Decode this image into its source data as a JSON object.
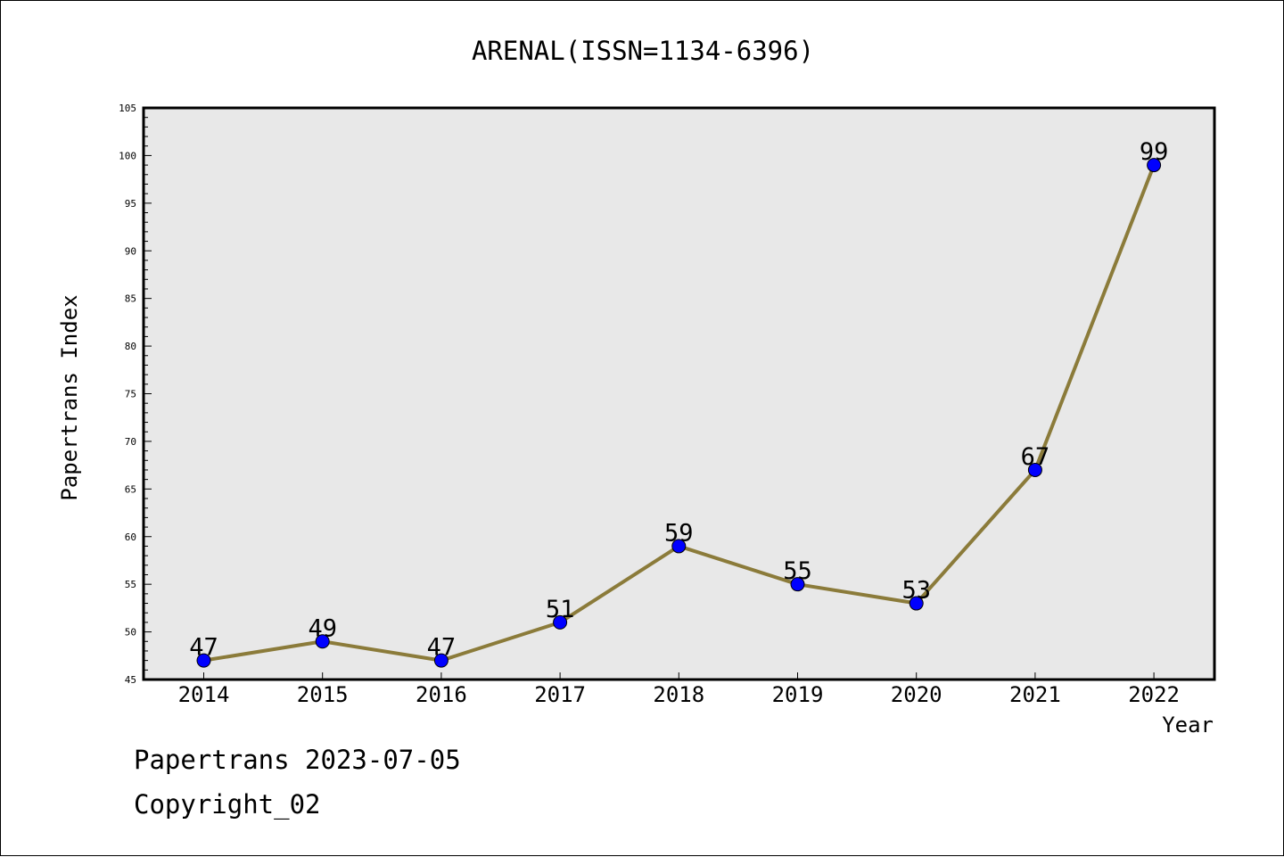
{
  "chart_data": {
    "type": "line",
    "title": "ARENAL(ISSN=1134-6396)",
    "xlabel": "Year",
    "ylabel": "Papertrans Index",
    "categories": [
      "2014",
      "2015",
      "2016",
      "2017",
      "2018",
      "2019",
      "2020",
      "2021",
      "2022"
    ],
    "values": [
      47,
      49,
      47,
      51,
      59,
      55,
      53,
      67,
      99
    ],
    "data_labels": [
      "47",
      "49",
      "47",
      "51",
      "59",
      "55",
      "53",
      "67",
      "99"
    ],
    "ylim": [
      45,
      105
    ],
    "yticks": [
      "45",
      "50",
      "55",
      "60",
      "65",
      "70",
      "75",
      "80",
      "85",
      "90",
      "95",
      "100",
      "105"
    ],
    "grid": false,
    "legend": "none",
    "colors": {
      "line": "#8b7b3a",
      "marker": "#0000ff",
      "plot_background": "#e8e8e8"
    }
  },
  "footer": {
    "date_text": "Papertrans 2023-07-05",
    "copyright_text": "Copyright_02"
  }
}
